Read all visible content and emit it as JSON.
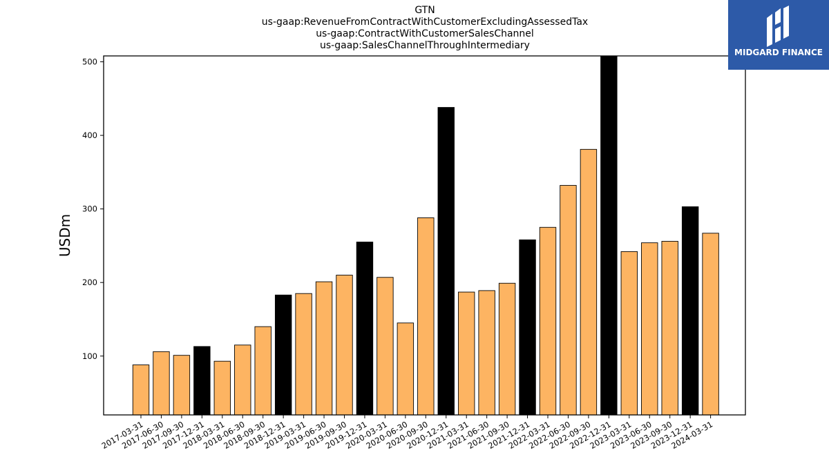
{
  "title_lines": [
    "GTN",
    "us-gaap:RevenueFromContractWithCustomerExcludingAssessedTax",
    "us-gaap:ContractWithCustomerSalesChannel",
    "us-gaap:SalesChannelThroughIntermediary"
  ],
  "logo": {
    "text": "MIDGARD FINANCE",
    "icon": "midgard-logo-icon",
    "background": "#2d5aa8"
  },
  "colors": {
    "bar": "#fdb462",
    "highlight": "#000000",
    "edge": "#000000"
  },
  "chart_data": {
    "type": "bar",
    "title": "GTN",
    "ylabel": "USDm",
    "xlabel": "",
    "ylim": [
      20,
      508
    ],
    "yticks": [
      100,
      200,
      300,
      400,
      500
    ],
    "categories": [
      "2017-03-31",
      "2017-06-30",
      "2017-09-30",
      "2017-12-31",
      "2018-03-31",
      "2018-06-30",
      "2018-09-30",
      "2018-12-31",
      "2019-03-31",
      "2019-06-30",
      "2019-09-30",
      "2019-12-31",
      "2020-03-31",
      "2020-06-30",
      "2020-09-30",
      "2020-12-31",
      "2021-03-31",
      "2021-06-30",
      "2021-09-30",
      "2021-12-31",
      "2022-03-31",
      "2022-06-30",
      "2022-09-30",
      "2022-12-31",
      "2023-03-31",
      "2023-06-30",
      "2023-09-30",
      "2023-12-31",
      "2024-03-31"
    ],
    "values": [
      88,
      106,
      101,
      113,
      93,
      115,
      140,
      183,
      185,
      201,
      210,
      255,
      207,
      145,
      288,
      438,
      187,
      189,
      199,
      258,
      275,
      332,
      381,
      508,
      242,
      254,
      256,
      303,
      267
    ],
    "highlight": [
      false,
      false,
      false,
      true,
      false,
      false,
      false,
      true,
      false,
      false,
      false,
      true,
      false,
      false,
      false,
      true,
      false,
      false,
      false,
      true,
      false,
      false,
      false,
      true,
      false,
      false,
      false,
      true,
      false
    ],
    "grid": false,
    "legend": "none"
  }
}
